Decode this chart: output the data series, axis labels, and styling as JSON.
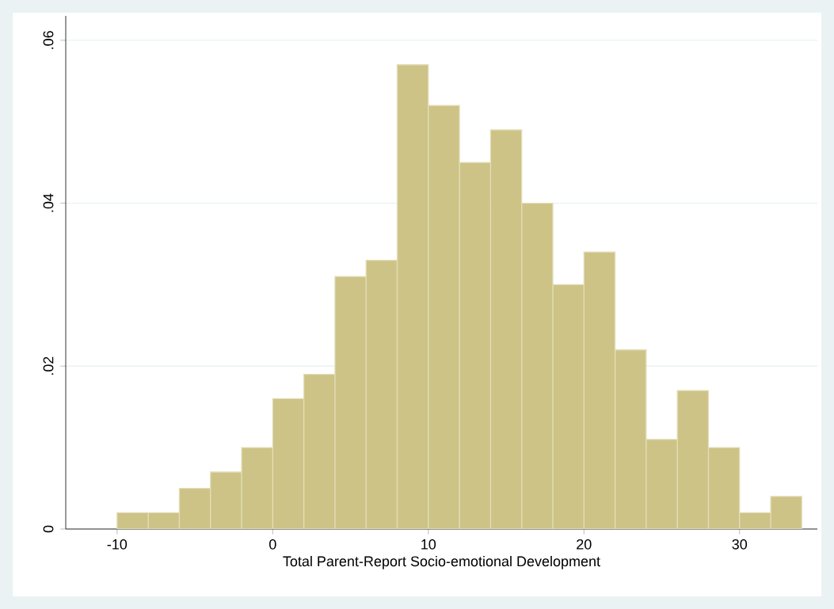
{
  "chart_data": {
    "type": "histogram",
    "xlabel": "Total Parent-Report Socio-emotional Development",
    "bins": [
      -10,
      -8,
      -6,
      -4,
      -2,
      0,
      2,
      4,
      6,
      8,
      10,
      12,
      14,
      16,
      18,
      20,
      22,
      24,
      26,
      28,
      30,
      32,
      34
    ],
    "values": [
      0.002,
      0.002,
      0.005,
      0.007,
      0.01,
      0.016,
      0.019,
      0.031,
      0.033,
      0.057,
      0.052,
      0.045,
      0.049,
      0.04,
      0.03,
      0.034,
      0.022,
      0.011,
      0.017,
      0.01,
      0.002,
      0.004
    ],
    "color": "#cdc386",
    "xlim": [
      -13.3,
      35
    ],
    "ylim": [
      0,
      0.063
    ],
    "xticks": [
      -10,
      0,
      10,
      20,
      30
    ],
    "yticks": [
      {
        "value": 0,
        "label": "0"
      },
      {
        "value": 0.02,
        "label": ".02"
      },
      {
        "value": 0.04,
        "label": ".04"
      },
      {
        "value": 0.06,
        "label": ".06"
      }
    ],
    "grid": "y"
  }
}
